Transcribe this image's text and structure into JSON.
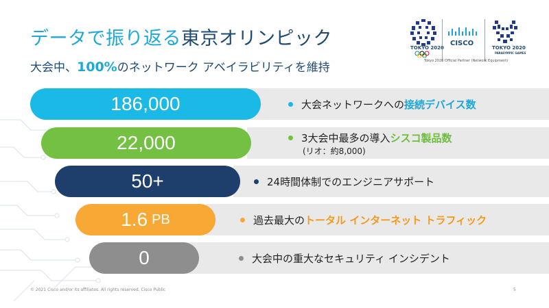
{
  "title": {
    "part1": "データで振り返る",
    "part2": "東京オリンピック"
  },
  "subtitle": {
    "pre": "大会中、",
    "highlight": "100%",
    "post": "のネットワーク アベイラビリティを維持"
  },
  "logos": {
    "olympic_caption": "TOKYO 2020",
    "cisco_text": "CISCO",
    "paralympic_caption": "TOKYO 2020",
    "paralympic_sub": "PARALYMPIC GAMES",
    "partner_text": "Tokyo 2020 Official Partner (Network Equipment)"
  },
  "stats": [
    {
      "value": "186,000",
      "unit": "",
      "color": "#1bb9e6",
      "dot": "#1bb9e6",
      "desc_plain": "大会ネットワークへの",
      "desc_hl": "接続デバイス数",
      "hl_color": "#1da8d8",
      "note": ""
    },
    {
      "value": "22,000",
      "unit": "",
      "color": "#73c043",
      "dot": "#73c043",
      "desc_plain": "3大会中最多の導入",
      "desc_hl": "シスコ製品数",
      "hl_color": "#6cbf3b",
      "note": "(リオ：約8,000)"
    },
    {
      "value": "50+",
      "unit": "",
      "color": "#1e3f6b",
      "dot": "#1e3f6b",
      "desc_plain": "24時間体制でのエンジニアサポート",
      "desc_hl": "",
      "hl_color": "#1e3f6b",
      "note": ""
    },
    {
      "value": "1.6",
      "unit": "PB",
      "color": "#f8a835",
      "dot": "#f8a835",
      "desc_plain": "過去最大の",
      "desc_hl": "トータル インターネット トラフィック",
      "hl_color": "#f39a1a",
      "note": ""
    },
    {
      "value": "0",
      "unit": "",
      "color": "#8e8e8e",
      "dot": "#8e8e8e",
      "desc_plain": "大会中の重大なセキュリティ インシデント",
      "desc_hl": "",
      "hl_color": "#8e8e8e",
      "note": ""
    }
  ],
  "footer": {
    "copyright": "© 2021 Cisco and/or its affiliates. All rights reserved.   Cisco Public",
    "page": "5"
  }
}
